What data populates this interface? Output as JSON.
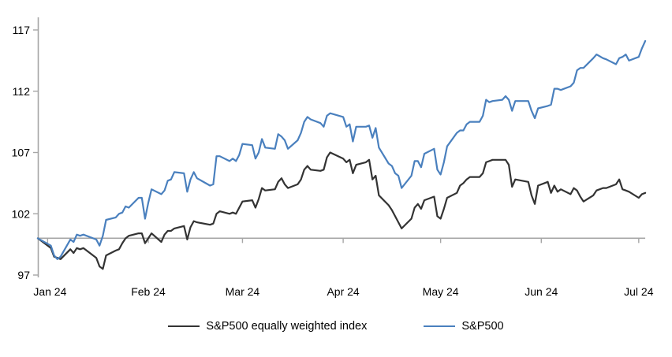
{
  "chart_data": {
    "type": "line",
    "title": "",
    "xlabel": "",
    "ylabel": "",
    "grid": false,
    "legend_position": "bottom",
    "y_ticks": [
      97,
      102,
      107,
      112,
      117
    ],
    "ylim": [
      97,
      117
    ],
    "axis_crosses_at": 100,
    "x_tick_labels": [
      "Jan 24",
      "Feb 24",
      "Mar 24",
      "Apr 24",
      "May 24",
      "Jun 24",
      "Jul 24"
    ],
    "x_tick_dates": [
      "2024-01-01",
      "2024-02-01",
      "2024-03-01",
      "2024-04-01",
      "2024-05-01",
      "2024-06-01",
      "2024-07-01"
    ],
    "dates": [
      "2023-12-29",
      "2024-01-02",
      "2024-01-03",
      "2024-01-04",
      "2024-01-05",
      "2024-01-08",
      "2024-01-09",
      "2024-01-10",
      "2024-01-11",
      "2024-01-12",
      "2024-01-16",
      "2024-01-17",
      "2024-01-18",
      "2024-01-19",
      "2024-01-22",
      "2024-01-23",
      "2024-01-24",
      "2024-01-25",
      "2024-01-26",
      "2024-01-29",
      "2024-01-30",
      "2024-01-31",
      "2024-02-01",
      "2024-02-02",
      "2024-02-05",
      "2024-02-06",
      "2024-02-07",
      "2024-02-08",
      "2024-02-09",
      "2024-02-12",
      "2024-02-13",
      "2024-02-14",
      "2024-02-15",
      "2024-02-16",
      "2024-02-20",
      "2024-02-21",
      "2024-02-22",
      "2024-02-23",
      "2024-02-26",
      "2024-02-27",
      "2024-02-28",
      "2024-02-29",
      "2024-03-01",
      "2024-03-04",
      "2024-03-05",
      "2024-03-06",
      "2024-03-07",
      "2024-03-08",
      "2024-03-11",
      "2024-03-12",
      "2024-03-13",
      "2024-03-14",
      "2024-03-15",
      "2024-03-18",
      "2024-03-19",
      "2024-03-20",
      "2024-03-21",
      "2024-03-22",
      "2024-03-25",
      "2024-03-26",
      "2024-03-27",
      "2024-03-28",
      "2024-04-01",
      "2024-04-02",
      "2024-04-03",
      "2024-04-04",
      "2024-04-05",
      "2024-04-08",
      "2024-04-09",
      "2024-04-10",
      "2024-04-11",
      "2024-04-12",
      "2024-04-15",
      "2024-04-16",
      "2024-04-17",
      "2024-04-18",
      "2024-04-19",
      "2024-04-22",
      "2024-04-23",
      "2024-04-24",
      "2024-04-25",
      "2024-04-26",
      "2024-04-29",
      "2024-04-30",
      "2024-05-01",
      "2024-05-02",
      "2024-05-03",
      "2024-05-06",
      "2024-05-07",
      "2024-05-08",
      "2024-05-09",
      "2024-05-10",
      "2024-05-13",
      "2024-05-14",
      "2024-05-15",
      "2024-05-16",
      "2024-05-17",
      "2024-05-20",
      "2024-05-21",
      "2024-05-22",
      "2024-05-23",
      "2024-05-24",
      "2024-05-28",
      "2024-05-29",
      "2024-05-30",
      "2024-05-31",
      "2024-06-03",
      "2024-06-04",
      "2024-06-05",
      "2024-06-06",
      "2024-06-07",
      "2024-06-10",
      "2024-06-11",
      "2024-06-12",
      "2024-06-13",
      "2024-06-14",
      "2024-06-17",
      "2024-06-18",
      "2024-06-20",
      "2024-06-21",
      "2024-06-24",
      "2024-06-25",
      "2024-06-26",
      "2024-06-27",
      "2024-06-28",
      "2024-07-01",
      "2024-07-02",
      "2024-07-03"
    ],
    "series": [
      {
        "name": "S&P500 equally weighted index",
        "color": "#333333",
        "values": [
          100.0,
          99.2,
          98.5,
          98.4,
          98.3,
          99.1,
          98.8,
          99.2,
          99.1,
          99.2,
          98.4,
          97.7,
          97.5,
          98.6,
          99.0,
          99.1,
          99.6,
          100.0,
          100.2,
          100.4,
          100.4,
          99.6,
          100.0,
          100.4,
          99.7,
          100.3,
          100.6,
          100.6,
          100.8,
          101.0,
          99.9,
          100.9,
          101.4,
          101.3,
          101.1,
          101.2,
          102.0,
          102.2,
          102.0,
          102.1,
          102.0,
          102.5,
          103.0,
          103.1,
          102.5,
          103.2,
          104.1,
          103.9,
          104.0,
          104.6,
          104.9,
          104.4,
          104.1,
          104.4,
          104.8,
          105.6,
          105.9,
          105.6,
          105.5,
          105.6,
          106.6,
          107.0,
          106.5,
          106.2,
          106.4,
          105.3,
          106.0,
          106.2,
          106.4,
          104.8,
          105.1,
          103.5,
          102.7,
          102.3,
          101.8,
          101.3,
          100.8,
          101.6,
          102.5,
          102.8,
          102.4,
          103.1,
          103.4,
          101.8,
          101.6,
          102.4,
          103.3,
          103.7,
          104.3,
          104.5,
          104.8,
          105.0,
          105.0,
          105.3,
          106.2,
          106.3,
          106.4,
          106.4,
          106.4,
          106.0,
          104.2,
          104.8,
          104.6,
          103.5,
          102.8,
          104.3,
          104.6,
          103.7,
          104.3,
          103.8,
          104.0,
          103.6,
          104.1,
          103.9,
          103.4,
          103.0,
          103.5,
          103.9,
          104.1,
          104.1,
          104.4,
          104.8,
          104.0,
          103.9,
          103.8,
          103.3,
          103.6,
          103.7
        ]
      },
      {
        "name": "S&P500",
        "color": "#4a80be",
        "values": [
          100.0,
          99.4,
          98.6,
          98.3,
          98.5,
          99.9,
          99.7,
          100.3,
          100.2,
          100.3,
          99.9,
          99.4,
          100.2,
          101.5,
          101.7,
          102.0,
          102.1,
          102.6,
          102.5,
          103.3,
          103.3,
          101.6,
          102.9,
          104.0,
          103.6,
          103.9,
          104.7,
          104.8,
          105.4,
          105.3,
          103.8,
          104.8,
          105.4,
          104.9,
          104.3,
          104.4,
          106.7,
          106.7,
          106.3,
          106.5,
          106.3,
          106.8,
          107.7,
          107.6,
          106.5,
          107.0,
          108.1,
          107.4,
          107.3,
          108.5,
          108.3,
          108.0,
          107.3,
          108.0,
          108.6,
          109.5,
          109.9,
          109.7,
          109.4,
          109.1,
          110.0,
          110.2,
          109.9,
          109.1,
          109.3,
          107.9,
          109.1,
          109.1,
          109.2,
          108.2,
          109.0,
          107.4,
          106.1,
          105.9,
          105.3,
          105.1,
          104.1,
          105.1,
          106.3,
          106.3,
          105.8,
          106.9,
          107.3,
          105.6,
          105.2,
          106.2,
          107.5,
          108.6,
          108.8,
          108.8,
          109.3,
          109.5,
          109.5,
          110.0,
          111.3,
          111.1,
          111.2,
          111.3,
          111.6,
          111.3,
          110.4,
          111.2,
          111.2,
          110.4,
          109.8,
          110.6,
          110.8,
          110.9,
          112.2,
          112.2,
          112.1,
          112.4,
          112.7,
          113.7,
          113.9,
          113.9,
          114.7,
          115.0,
          114.7,
          114.6,
          114.2,
          114.7,
          114.8,
          115.0,
          114.5,
          114.8,
          115.5,
          116.1
        ]
      }
    ]
  },
  "colors": {
    "axis": "#a6a6a6",
    "text": "#000000",
    "background": "#ffffff"
  }
}
